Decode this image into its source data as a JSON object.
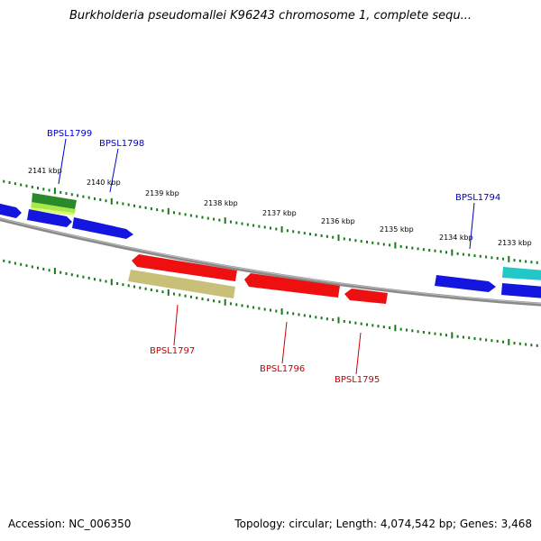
{
  "title": "Burkholderia pseudomallei K96243 chromosome 1, complete sequ...",
  "accession": "Accession: NC_006350",
  "summary": "Topology: circular; Length: 4,074,542 bp; Genes: 3,468",
  "ruler": [
    {
      "label": "2141 kbp"
    },
    {
      "label": "2140 kbp"
    },
    {
      "label": "2139 kbp"
    },
    {
      "label": "2138 kbp"
    },
    {
      "label": "2137 kbp"
    },
    {
      "label": "2136 kbp"
    },
    {
      "label": "2135 kbp"
    },
    {
      "label": "2134 kbp"
    },
    {
      "label": "2133 kbp"
    }
  ],
  "gene_labels": [
    {
      "name": "BPSL1799",
      "strand": "forward"
    },
    {
      "name": "BPSL1798",
      "strand": "forward"
    },
    {
      "name": "BPSL1794",
      "strand": "forward"
    },
    {
      "name": "BPSL1797",
      "strand": "reverse"
    },
    {
      "name": "BPSL1796",
      "strand": "reverse"
    },
    {
      "name": "BPSL1795",
      "strand": "reverse"
    }
  ],
  "colors": {
    "forward_label": "#0000cc",
    "reverse_label": "#cc0000",
    "forward_gene": "#0000ee",
    "reverse_gene": "#ee0000",
    "ruler": "#1a7a1a",
    "backbone": "#888888"
  }
}
